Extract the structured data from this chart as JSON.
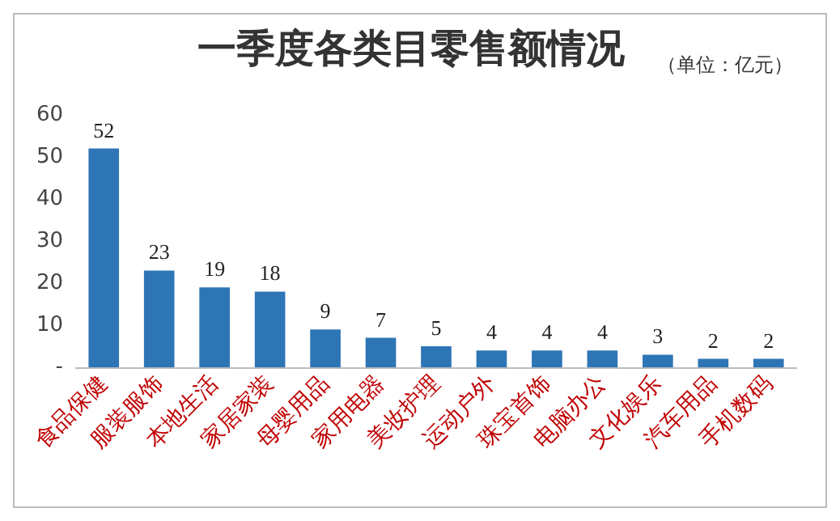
{
  "chart_data": {
    "type": "bar",
    "title": "一季度各类目零售额情况",
    "subtitle": "（单位：亿元）",
    "categories": [
      "食品保健",
      "服装服饰",
      "本地生活",
      "家居家装",
      "母婴用品",
      "家用电器",
      "美妆护理",
      "运动户外",
      "珠宝首饰",
      "电脑办公",
      "文化娱乐",
      "汽车用品",
      "手机数码"
    ],
    "values": [
      52,
      23,
      19,
      18,
      9,
      7,
      5,
      4,
      4,
      4,
      3,
      2,
      2
    ],
    "color": "#2e75b6",
    "ylim": [
      0,
      60
    ],
    "yticks": [
      {
        "value": 0,
        "label": "-"
      },
      10,
      20,
      30,
      40,
      50,
      60
    ],
    "grid": false,
    "data_labels": true
  }
}
